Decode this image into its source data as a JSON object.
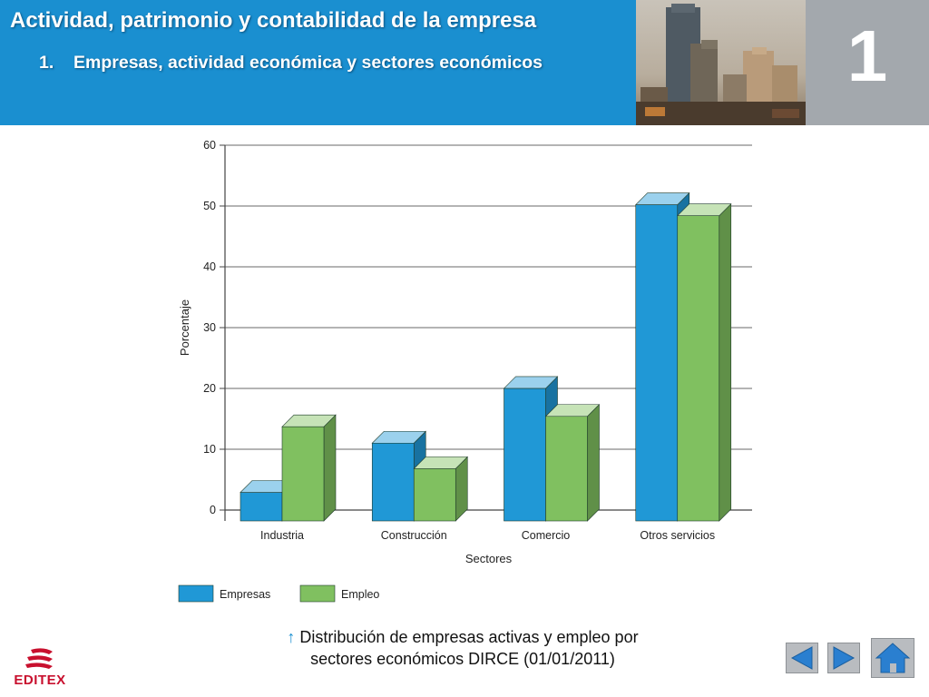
{
  "header": {
    "title": "Actividad, patrimonio y contabilidad de la empresa",
    "subtitle_number": "1.",
    "subtitle_text": "Empresas, actividad económica y sectores económicos",
    "chapter_number": "1"
  },
  "caption": {
    "arrow": "↑",
    "line1": " Distribución de empresas activas y empleo por",
    "line2": "sectores económicos DIRCE (01/01/2011)"
  },
  "logo": {
    "text": "EDITEX"
  },
  "colors": {
    "header_blue": "#1a8fd0",
    "empresas": "#2098d6",
    "empleo": "#80c060"
  },
  "icons": {
    "prev": "triangle-left-icon",
    "next": "triangle-right-icon",
    "home": "home-icon"
  },
  "chart_data": {
    "type": "bar",
    "xlabel": "Sectores",
    "ylabel": "Porcentaje",
    "ylim": [
      0,
      60
    ],
    "yticks": [
      0,
      10,
      20,
      30,
      40,
      50,
      60
    ],
    "grid": true,
    "style": "3d",
    "legend_position": "bottom-left",
    "categories": [
      "Industria",
      "Construcción",
      "Comercio",
      "Otros servicios"
    ],
    "series": [
      {
        "name": "Empresas",
        "values": [
          4.7,
          12.8,
          21.8,
          52.0
        ]
      },
      {
        "name": "Empleo",
        "values": [
          15.5,
          8.6,
          17.2,
          50.2
        ]
      }
    ]
  }
}
